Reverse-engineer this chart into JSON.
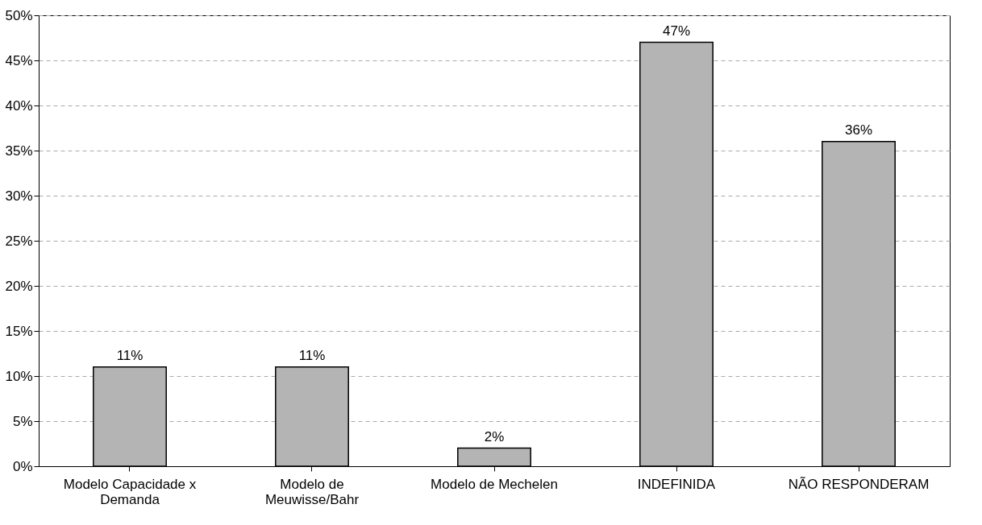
{
  "chart_data": {
    "type": "bar",
    "categories": [
      "Modelo Capacidade x Demanda",
      "Modelo de Meuwisse/Bahr",
      "Modelo de Mechelen",
      "INDEFINIDA",
      "NÃO RESPONDERAM"
    ],
    "values": [
      11,
      11,
      2,
      47,
      36
    ],
    "color": "#b4b4b4",
    "data_labels": true,
    "value_labels": [
      "11%",
      "11%",
      "2%",
      "47%",
      "36%"
    ],
    "ylim": [
      0,
      50
    ],
    "yticks": [
      {
        "value": 0,
        "label": "0%"
      },
      {
        "value": 5,
        "label": "5%"
      },
      {
        "value": 10,
        "label": "10%"
      },
      {
        "value": 15,
        "label": "15%"
      },
      {
        "value": 20,
        "label": "20%"
      },
      {
        "value": 25,
        "label": "25%"
      },
      {
        "value": 30,
        "label": "30%"
      },
      {
        "value": 35,
        "label": "35%"
      },
      {
        "value": 40,
        "label": "40%"
      },
      {
        "value": 45,
        "label": "45%"
      },
      {
        "value": 50,
        "label": "50%"
      }
    ],
    "grid": "y"
  }
}
